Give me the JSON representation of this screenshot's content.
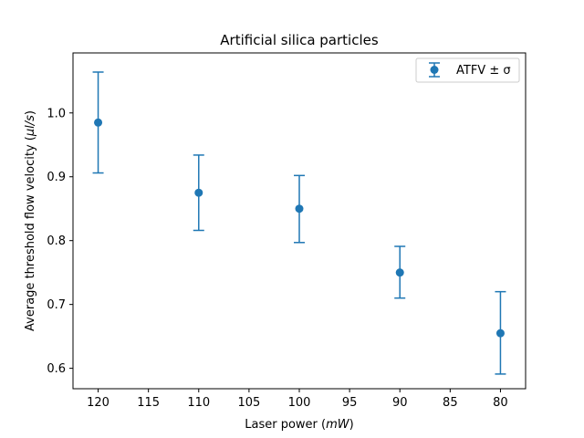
{
  "chart_data": {
    "type": "scatter",
    "title": "Artificial silica particles",
    "xlabel": "Laser power (mW)",
    "xlabel_main": "Laser power (",
    "xlabel_unit": "mW",
    "xlabel_close": ")",
    "ylabel": "Average threshold flow velocity (µl/s)",
    "ylabel_main": "Average threshold flow velocity (",
    "ylabel_unit": "µl/s",
    "ylabel_close": ")",
    "x_inverted": true,
    "xlim": [
      122.5,
      77.5
    ],
    "ylim": [
      0.568,
      1.094
    ],
    "xticks": [
      120,
      115,
      110,
      105,
      100,
      95,
      90,
      85,
      80
    ],
    "yticks": [
      0.6,
      0.7,
      0.8,
      0.9,
      1.0
    ],
    "grid": false,
    "legend": {
      "position": "top-right",
      "entries": [
        "ATFV ± σ"
      ]
    },
    "color": "#1f77b4",
    "series": [
      {
        "name": "ATFV ± σ",
        "x": [
          120,
          110,
          100,
          90,
          80
        ],
        "y": [
          0.985,
          0.875,
          0.85,
          0.75,
          0.655
        ],
        "err_low": [
          0.906,
          0.816,
          0.797,
          0.71,
          0.591
        ],
        "err_high": [
          1.064,
          0.934,
          0.902,
          0.791,
          0.72
        ]
      }
    ]
  }
}
